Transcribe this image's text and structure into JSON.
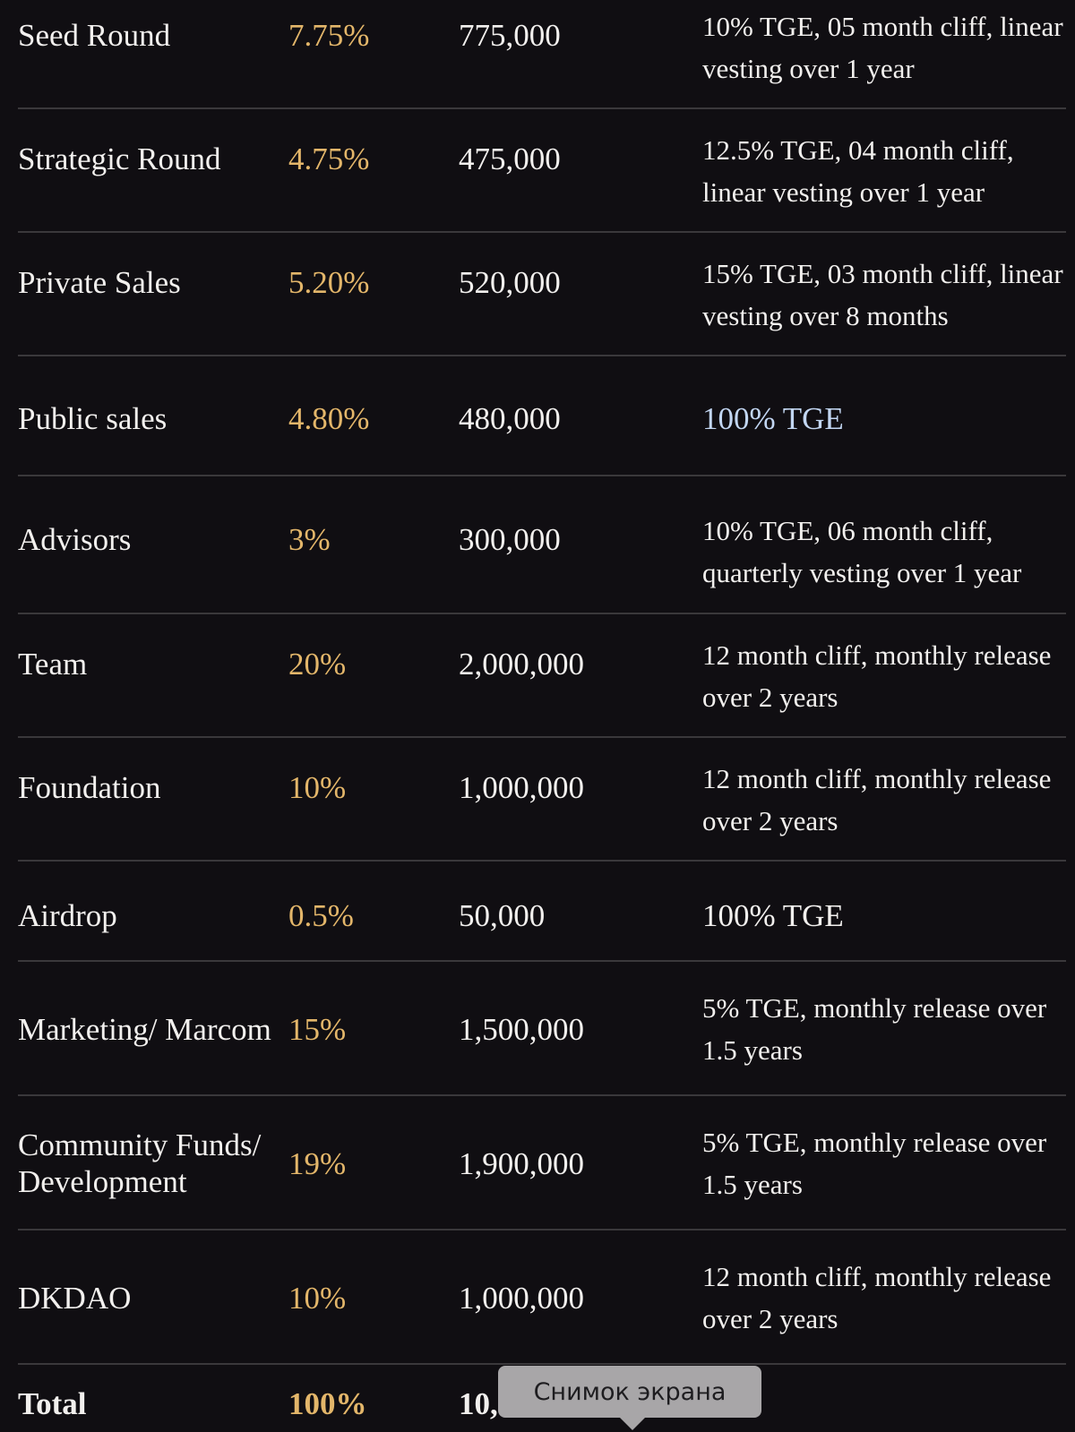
{
  "rows": [
    {
      "name": "Seed Round",
      "percent": "7.75%",
      "amount": "775,000",
      "vesting": "10% TGE, 05 month cliff, linear vesting over 1 year"
    },
    {
      "name": "Strategic Round",
      "percent": "4.75%",
      "amount": "475,000",
      "vesting": "12.5% TGE, 04 month cliff, linear vesting over 1 year"
    },
    {
      "name": "Private Sales",
      "percent": "5.20%",
      "amount": "520,000",
      "vesting": "15% TGE, 03 month cliff, linear vesting over 8 months"
    },
    {
      "name": "Public sales",
      "percent": "4.80%",
      "amount": "480,000",
      "vesting": "100% TGE"
    },
    {
      "name": "Advisors",
      "percent": "3%",
      "amount": "300,000",
      "vesting": "10% TGE, 06 month cliff, quarterly vesting over 1 year"
    },
    {
      "name": "Team",
      "percent": "20%",
      "amount": "2,000,000",
      "vesting": "12 month cliff, monthly release over 2 years"
    },
    {
      "name": "Foundation",
      "percent": "10%",
      "amount": "1,000,000",
      "vesting": "12 month cliff, monthly release over 2 years"
    },
    {
      "name": "Airdrop",
      "percent": "0.5%",
      "amount": "50,000",
      "vesting": "100% TGE"
    },
    {
      "name": "Marketing/ Marcom",
      "percent": "15%",
      "amount": "1,500,000",
      "vesting": "5% TGE, monthly release over 1.5 years"
    },
    {
      "name": "Community Funds/ Development",
      "percent": "19%",
      "amount": "1,900,000",
      "vesting": "5% TGE, monthly release over 1.5 years"
    },
    {
      "name": "DKDAO",
      "percent": "10%",
      "amount": "1,000,000",
      "vesting": "12 month cliff, monthly release over 2 years"
    }
  ],
  "total": {
    "name": "Total",
    "percent": "100%",
    "amount": "10,"
  },
  "tooltip": "Снимок экрана",
  "colors": {
    "background": "#100e12",
    "percent": "#e3b66a",
    "text": "#f2f0ee",
    "link": "#c2d6f2",
    "divider": "#3a383b"
  }
}
